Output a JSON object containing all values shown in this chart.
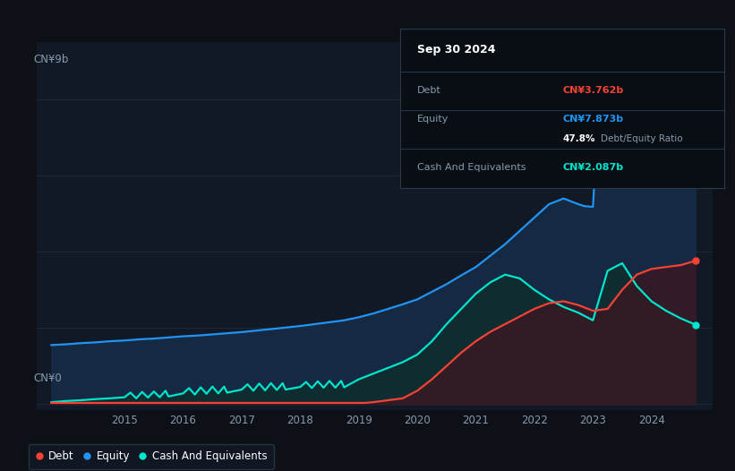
{
  "bg_color": "#0d1117",
  "plot_bg_color": "#111927",
  "grid_color": "#1c2a3a",
  "ylabel_top": "CN¥9b",
  "ylabel_bottom": "CN¥0",
  "xlim_start": 2013.5,
  "xlim_end": 2025.05,
  "ylim_min": -0.15,
  "ylim_max": 9.5,
  "xticks": [
    2015,
    2016,
    2017,
    2018,
    2019,
    2020,
    2021,
    2022,
    2023,
    2024
  ],
  "equity_color": "#2194f3",
  "equity_fill": "#162d47",
  "debt_color": "#f44336",
  "debt_fill": "#3d1520",
  "cash_color": "#00e5cc",
  "cash_fill": "#0d2f2a",
  "title_box": {
    "date": "Sep 30 2024",
    "debt_label": "Debt",
    "debt_value": "CN¥3.762b",
    "debt_color": "#f44336",
    "equity_label": "Equity",
    "equity_value": "CN¥7.873b",
    "equity_color": "#2194f3",
    "ratio_pct": "47.8%",
    "ratio_label": "Debt/Equity Ratio",
    "cash_label": "Cash And Equivalents",
    "cash_value": "CN¥2.087b",
    "cash_color": "#00e5cc"
  },
  "legend_items": [
    {
      "label": "Debt",
      "color": "#f44336"
    },
    {
      "label": "Equity",
      "color": "#2194f3"
    },
    {
      "label": "Cash And Equivalents",
      "color": "#00e5cc"
    }
  ],
  "equity_x": [
    2013.75,
    2014.0,
    2014.25,
    2014.5,
    2014.75,
    2015.0,
    2015.25,
    2015.5,
    2015.75,
    2016.0,
    2016.25,
    2016.5,
    2016.75,
    2017.0,
    2017.25,
    2017.5,
    2017.75,
    2018.0,
    2018.25,
    2018.5,
    2018.75,
    2019.0,
    2019.25,
    2019.5,
    2019.75,
    2020.0,
    2020.25,
    2020.5,
    2020.75,
    2021.0,
    2021.25,
    2021.5,
    2021.75,
    2022.0,
    2022.25,
    2022.5,
    2022.75,
    2022.85,
    2023.0,
    2023.1,
    2023.25,
    2023.5,
    2023.75,
    2024.0,
    2024.25,
    2024.5,
    2024.75
  ],
  "equity_y": [
    1.55,
    1.57,
    1.6,
    1.62,
    1.65,
    1.67,
    1.7,
    1.72,
    1.75,
    1.78,
    1.8,
    1.83,
    1.86,
    1.89,
    1.93,
    1.97,
    2.01,
    2.05,
    2.1,
    2.15,
    2.2,
    2.28,
    2.38,
    2.5,
    2.62,
    2.75,
    2.95,
    3.15,
    3.38,
    3.6,
    3.9,
    4.2,
    4.55,
    4.9,
    5.25,
    5.4,
    5.25,
    5.2,
    5.18,
    7.8,
    7.95,
    7.9,
    7.85,
    7.9,
    7.88,
    7.87,
    7.873
  ],
  "debt_x": [
    2013.75,
    2014.0,
    2014.25,
    2014.5,
    2014.75,
    2015.0,
    2015.25,
    2015.5,
    2015.75,
    2016.0,
    2016.25,
    2016.5,
    2016.75,
    2017.0,
    2017.25,
    2017.5,
    2017.75,
    2018.0,
    2018.25,
    2018.5,
    2018.75,
    2018.9,
    2019.0,
    2019.1,
    2019.25,
    2019.5,
    2019.75,
    2020.0,
    2020.25,
    2020.5,
    2020.75,
    2021.0,
    2021.25,
    2021.5,
    2021.75,
    2022.0,
    2022.25,
    2022.5,
    2022.75,
    2023.0,
    2023.25,
    2023.5,
    2023.75,
    2024.0,
    2024.25,
    2024.5,
    2024.75
  ],
  "debt_y": [
    0.03,
    0.03,
    0.03,
    0.03,
    0.03,
    0.03,
    0.03,
    0.03,
    0.03,
    0.03,
    0.03,
    0.03,
    0.03,
    0.03,
    0.03,
    0.03,
    0.03,
    0.03,
    0.03,
    0.03,
    0.03,
    0.03,
    0.03,
    0.03,
    0.05,
    0.1,
    0.15,
    0.35,
    0.65,
    1.0,
    1.35,
    1.65,
    1.9,
    2.1,
    2.3,
    2.5,
    2.65,
    2.7,
    2.6,
    2.45,
    2.5,
    3.0,
    3.4,
    3.55,
    3.6,
    3.65,
    3.762
  ],
  "cash_x": [
    2013.75,
    2014.0,
    2014.25,
    2014.5,
    2014.75,
    2015.0,
    2015.1,
    2015.2,
    2015.3,
    2015.4,
    2015.5,
    2015.6,
    2015.7,
    2015.75,
    2016.0,
    2016.1,
    2016.2,
    2016.3,
    2016.4,
    2016.5,
    2016.6,
    2016.7,
    2016.75,
    2017.0,
    2017.1,
    2017.2,
    2017.3,
    2017.4,
    2017.5,
    2017.6,
    2017.7,
    2017.75,
    2018.0,
    2018.1,
    2018.2,
    2018.3,
    2018.4,
    2018.5,
    2018.6,
    2018.7,
    2018.75,
    2019.0,
    2019.25,
    2019.5,
    2019.75,
    2020.0,
    2020.25,
    2020.5,
    2020.75,
    2021.0,
    2021.25,
    2021.5,
    2021.75,
    2022.0,
    2022.25,
    2022.5,
    2022.75,
    2023.0,
    2023.25,
    2023.5,
    2023.75,
    2024.0,
    2024.25,
    2024.5,
    2024.75
  ],
  "cash_y": [
    0.05,
    0.08,
    0.1,
    0.13,
    0.15,
    0.18,
    0.3,
    0.15,
    0.32,
    0.17,
    0.33,
    0.18,
    0.35,
    0.2,
    0.28,
    0.42,
    0.25,
    0.44,
    0.27,
    0.46,
    0.28,
    0.46,
    0.3,
    0.38,
    0.52,
    0.35,
    0.54,
    0.36,
    0.55,
    0.37,
    0.55,
    0.38,
    0.45,
    0.58,
    0.42,
    0.6,
    0.43,
    0.61,
    0.43,
    0.61,
    0.44,
    0.65,
    0.8,
    0.95,
    1.1,
    1.3,
    1.65,
    2.1,
    2.5,
    2.9,
    3.2,
    3.4,
    3.3,
    3.0,
    2.75,
    2.55,
    2.4,
    2.2,
    3.5,
    3.7,
    3.1,
    2.7,
    2.45,
    2.25,
    2.087
  ]
}
